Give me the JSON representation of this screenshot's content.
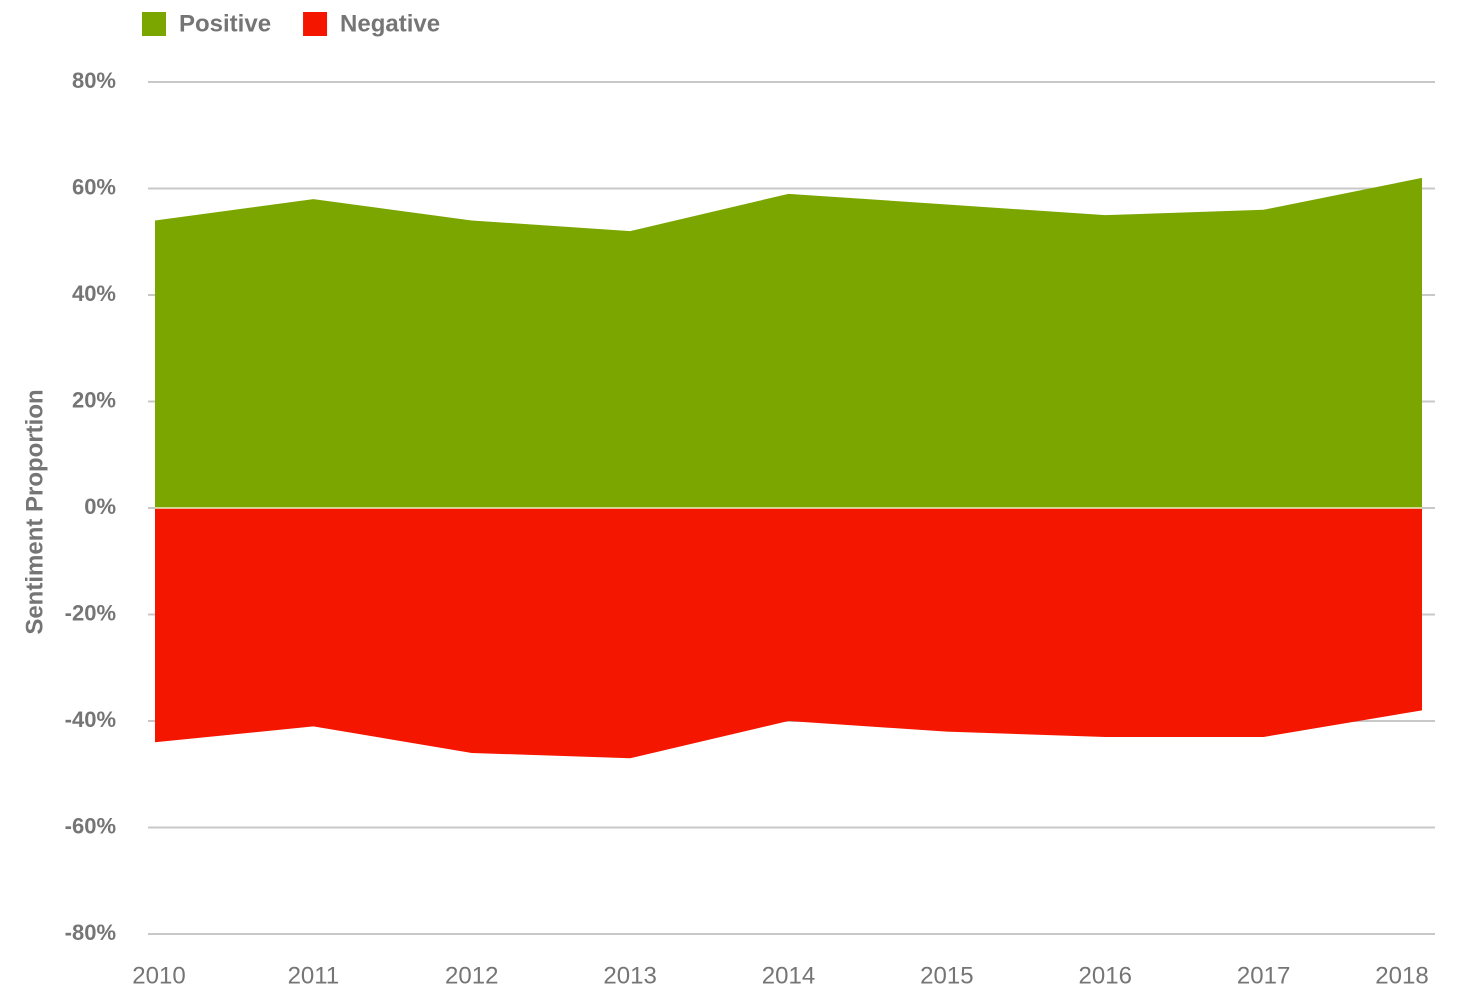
{
  "chart_data": {
    "type": "area",
    "y_label": "Sentiment Proportion",
    "categories": [
      "2010",
      "2011",
      "2012",
      "2013",
      "2014",
      "2015",
      "2016",
      "2017",
      "2018"
    ],
    "series": [
      {
        "name": "Positive",
        "color": "#7ba600",
        "values": [
          54,
          58,
          54,
          52,
          59,
          57,
          55,
          56,
          62
        ]
      },
      {
        "name": "Negative",
        "color": "#f51600",
        "values": [
          -44,
          -41,
          -46,
          -47,
          -40,
          -42,
          -43,
          -43,
          -38
        ]
      }
    ],
    "ylim": [
      -80,
      80
    ],
    "yticks": [
      {
        "value": -80,
        "label": "-80%"
      },
      {
        "value": -60,
        "label": "-60%"
      },
      {
        "value": -40,
        "label": "-40%"
      },
      {
        "value": -20,
        "label": "-20%"
      },
      {
        "value": 0,
        "label": "0%"
      },
      {
        "value": 20,
        "label": "20%"
      },
      {
        "value": 40,
        "label": "40%"
      },
      {
        "value": 60,
        "label": "60%"
      },
      {
        "value": 80,
        "label": "80%"
      }
    ],
    "grid": true,
    "legend": "top-left"
  }
}
